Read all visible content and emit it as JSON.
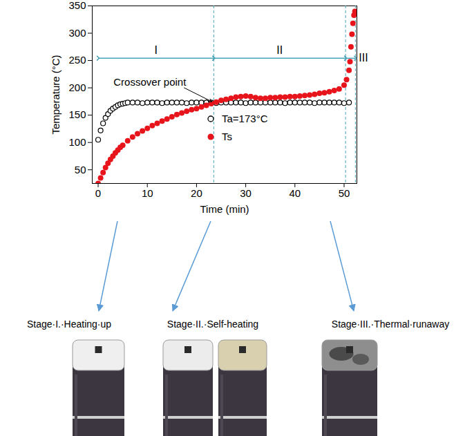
{
  "chart_data": {
    "type": "scatter",
    "x_label": "Time (min)",
    "y_label": "Temperature (°C)",
    "xlim": [
      -1.2,
      52.6
    ],
    "ylim": [
      25,
      350
    ],
    "xticks": [
      0,
      10,
      20,
      30,
      40,
      50
    ],
    "yticks": [
      50,
      100,
      150,
      200,
      250,
      300,
      350
    ],
    "legend": "center",
    "series": [
      {
        "name": "Ta=173°C",
        "color": "#000000",
        "marker": "open_circle",
        "x": [
          0,
          0.5,
          1,
          1.5,
          2,
          2.5,
          3,
          3.5,
          4,
          4.5,
          5,
          5.5,
          6,
          7,
          8,
          9,
          10,
          11,
          12,
          13,
          14,
          15,
          16,
          17,
          18,
          19,
          20,
          21,
          22,
          23,
          24,
          25,
          26,
          27,
          28,
          29,
          30,
          31,
          32,
          33,
          34,
          35,
          36,
          37,
          38,
          39,
          40,
          41,
          42,
          43,
          44,
          45,
          46,
          47,
          48,
          49,
          50,
          51
        ],
        "values": [
          105,
          122,
          135,
          145,
          152,
          158,
          162,
          165,
          168,
          170,
          171,
          172,
          173,
          173,
          173,
          172,
          173,
          173,
          173,
          172,
          173,
          173,
          173,
          173,
          172,
          173,
          173,
          173,
          173,
          173,
          172,
          173,
          173,
          173,
          173,
          173,
          172,
          173,
          173,
          173,
          173,
          173,
          173,
          173,
          172,
          173,
          173,
          173,
          173,
          173,
          172,
          173,
          173,
          173,
          173,
          173,
          172,
          173
        ]
      },
      {
        "name": "Ts",
        "color": "#e8141c",
        "marker": "circle",
        "x": [
          0,
          0.5,
          1,
          1.5,
          2,
          2.5,
          3,
          3.5,
          4,
          4.5,
          5,
          6,
          7,
          8,
          9,
          10,
          11,
          12,
          13,
          14,
          15,
          16,
          17,
          18,
          19,
          20,
          21,
          22,
          23,
          24,
          25,
          26,
          27,
          28,
          29,
          30,
          31,
          32,
          33,
          34,
          35,
          36,
          37,
          38,
          39,
          40,
          41,
          42,
          43,
          44,
          45,
          46,
          47,
          48,
          49,
          50,
          50.5,
          51,
          51.2,
          51.4,
          51.6,
          51.8,
          52,
          52.2
        ],
        "values": [
          25,
          35,
          45,
          54,
          62,
          69,
          75,
          81,
          86,
          91,
          95,
          103,
          110,
          116,
          121,
          126,
          131,
          135,
          139,
          143,
          147,
          151,
          154,
          157,
          160,
          162,
          165,
          168,
          171,
          174,
          177,
          179,
          181,
          183,
          184,
          185,
          184,
          182,
          181,
          181,
          182,
          182,
          183,
          183,
          184,
          184,
          185,
          186,
          187,
          188,
          190,
          191,
          193,
          195,
          198,
          205,
          215,
          232,
          248,
          275,
          298,
          318,
          333,
          340
        ]
      }
    ],
    "stages": [
      {
        "label": "I",
        "start": 0,
        "end": 23.5,
        "color": "#4aa3b8"
      },
      {
        "label": "II",
        "start": 23.5,
        "end": 50.3,
        "color": "#4aa3b8"
      },
      {
        "label": "III",
        "start": 50.3,
        "end": 52.3,
        "color": "#4aa3b8"
      }
    ],
    "annotation": {
      "text": "Crossover point",
      "x": 10.5,
      "y": 210,
      "points_to": [
        23.5,
        173
      ]
    },
    "stage_photos": [
      "Stage·I.·Heating·up",
      "Stage·II.·Self-heating",
      "Stage·III.·Thermal·runaway"
    ]
  }
}
